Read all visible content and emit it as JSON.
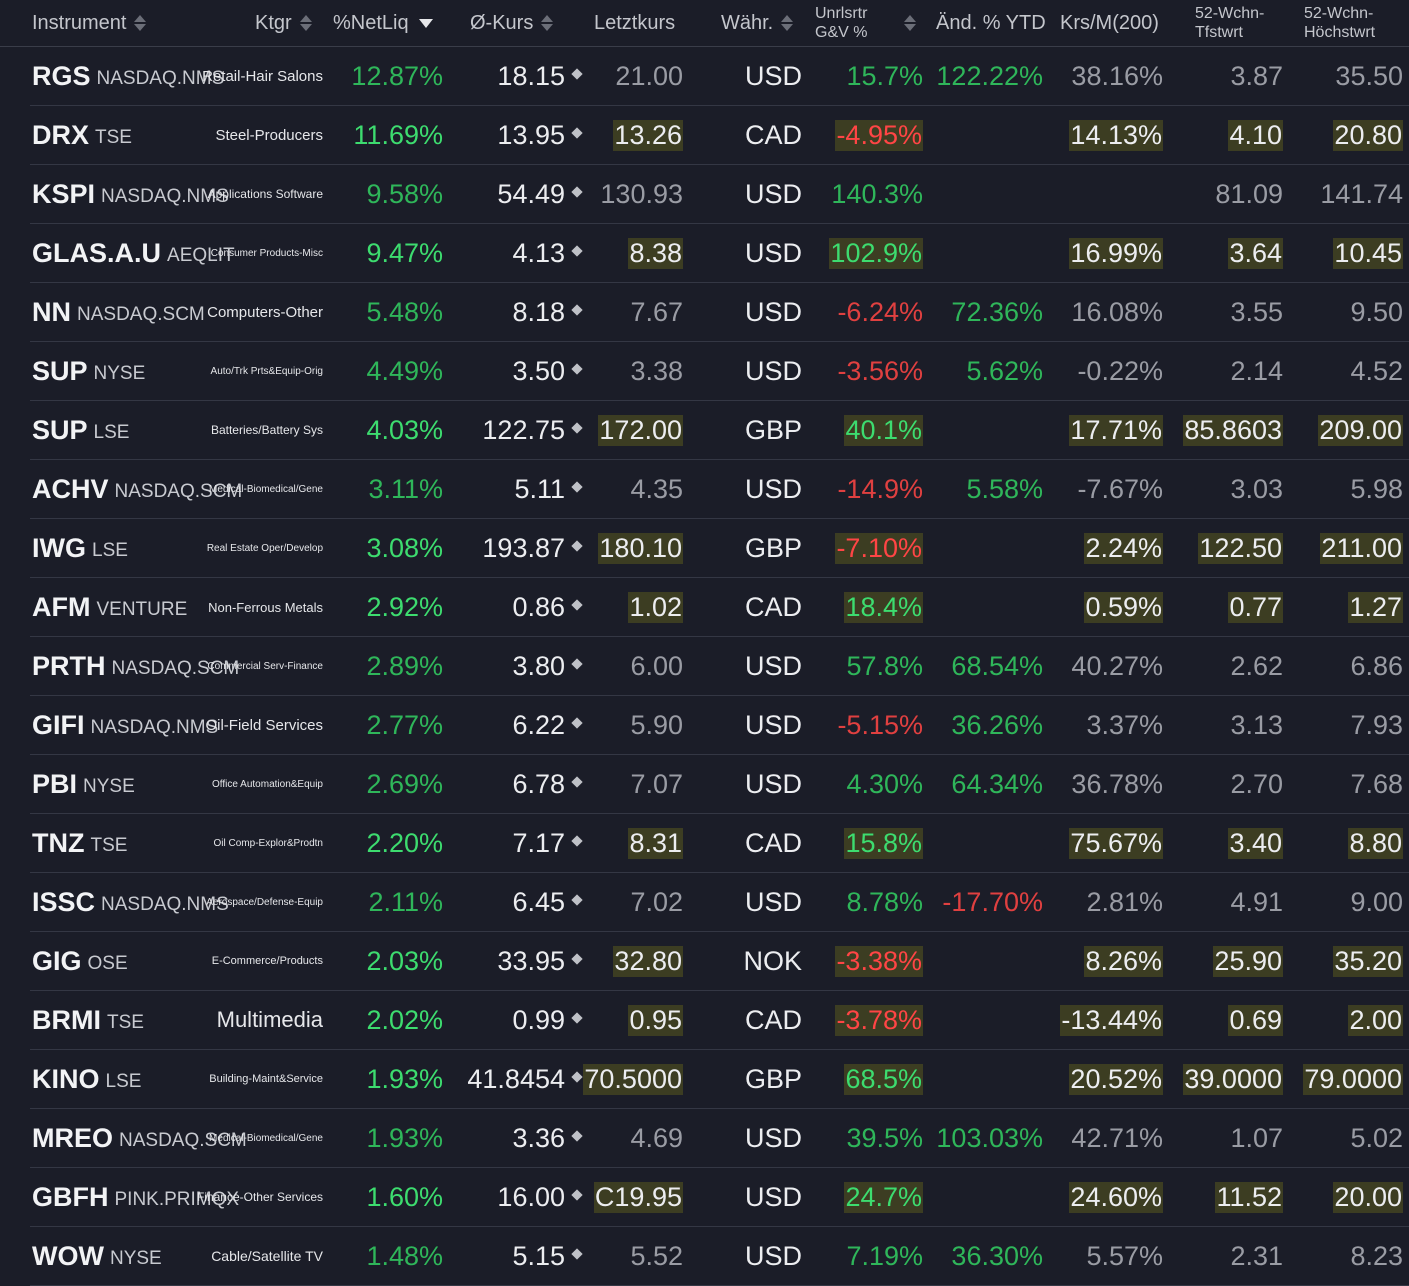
{
  "header": {
    "instrument": "Instrument",
    "ktgr": "Ktgr",
    "netliq": "%NetLiq",
    "avg_price": "Ø-Kurs",
    "last": "Letztkurs",
    "currency": "Währ.",
    "unrl_line1": "Unrlsrtr",
    "unrl_line2": "G&V %",
    "ytd": "Änd. % YTD",
    "ma200": "Krs/M(200)",
    "low_line1": "52-Wchn-",
    "low_line2": "Tfstwrt",
    "high_line1": "52-Wchn-",
    "high_line2": "Höchstwrt"
  },
  "rows": [
    {
      "sym": "RGS",
      "exch": "NASDAQ.NMS",
      "cat": "Retail-Hair Salons",
      "cs": 15,
      "netliq": "12.87%",
      "nc": "dim",
      "avg": "18.15",
      "last": "21.00",
      "lc": "dim",
      "lh": false,
      "cur": "USD",
      "unrl": "15.7%",
      "uc": "dim",
      "ytd": "122.22%",
      "yc": "dim",
      "ma": "38.16%",
      "mc": "dim",
      "low": "3.87",
      "high": "35.50",
      "hh": false
    },
    {
      "sym": "DRX",
      "exch": "TSE",
      "cat": "Steel-Producers",
      "cs": 15,
      "netliq": "11.69%",
      "nc": "pos",
      "avg": "13.95",
      "last": "13.26",
      "lc": "wht",
      "lh": true,
      "cur": "CAD",
      "unrl": "-4.95%",
      "uc": "neg",
      "ytd": "",
      "yc": "dim",
      "ma": "14.13%",
      "mc": "wht",
      "low": "4.10",
      "high": "20.80",
      "hh": true
    },
    {
      "sym": "KSPI",
      "exch": "NASDAQ.NMS",
      "cat": "Applications Software",
      "cs": 12,
      "netliq": "9.58%",
      "nc": "dim",
      "avg": "54.49",
      "last": "130.93",
      "lc": "dim",
      "lh": false,
      "cur": "USD",
      "unrl": "140.3%",
      "uc": "dim",
      "ytd": "",
      "yc": "dim",
      "ma": "",
      "mc": "dim",
      "low": "81.09",
      "high": "141.74",
      "hh": false
    },
    {
      "sym": "GLAS.A.U",
      "exch": "AEQLIT",
      "cat": "Consumer Products-Misc",
      "cs": 10,
      "netliq": "9.47%",
      "nc": "pos",
      "avg": "4.13",
      "last": "8.38",
      "lc": "wht",
      "lh": true,
      "cur": "USD",
      "unrl": "102.9%",
      "uc": "pos",
      "ytd": "",
      "yc": "dim",
      "ma": "16.99%",
      "mc": "wht",
      "low": "3.64",
      "high": "10.45",
      "hh": true
    },
    {
      "sym": "NN",
      "exch": "NASDAQ.SCM",
      "cat": "Computers-Other",
      "cs": 15,
      "netliq": "5.48%",
      "nc": "dim",
      "avg": "8.18",
      "last": "7.67",
      "lc": "dim",
      "lh": false,
      "cur": "USD",
      "unrl": "-6.24%",
      "uc": "negdim",
      "ytd": "72.36%",
      "yc": "dim",
      "ma": "16.08%",
      "mc": "dim",
      "low": "3.55",
      "high": "9.50",
      "hh": false
    },
    {
      "sym": "SUP",
      "exch": "NYSE",
      "cat": "Auto/Trk Prts&Equip-Orig",
      "cs": 10,
      "netliq": "4.49%",
      "nc": "dim",
      "avg": "3.50",
      "last": "3.38",
      "lc": "dim",
      "lh": false,
      "cur": "USD",
      "unrl": "-3.56%",
      "uc": "negdim",
      "ytd": "5.62%",
      "yc": "dim",
      "ma": "-0.22%",
      "mc": "dim",
      "low": "2.14",
      "high": "4.52",
      "hh": false
    },
    {
      "sym": "SUP",
      "exch": "LSE",
      "cat": "Batteries/Battery Sys",
      "cs": 12,
      "netliq": "4.03%",
      "nc": "pos",
      "avg": "122.75",
      "last": "172.00",
      "lc": "wht",
      "lh": true,
      "cur": "GBP",
      "unrl": "40.1%",
      "uc": "pos",
      "ytd": "",
      "yc": "dim",
      "ma": "17.71%",
      "mc": "wht",
      "low": "85.8603",
      "high": "209.00",
      "hh": true
    },
    {
      "sym": "ACHV",
      "exch": "NASDAQ.SCM",
      "cat": "Medical-Biomedical/Gene",
      "cs": 10,
      "netliq": "3.11%",
      "nc": "dim",
      "avg": "5.11",
      "last": "4.35",
      "lc": "dim",
      "lh": false,
      "cur": "USD",
      "unrl": "-14.9%",
      "uc": "negdim",
      "ytd": "5.58%",
      "yc": "dim",
      "ma": "-7.67%",
      "mc": "dim",
      "low": "3.03",
      "high": "5.98",
      "hh": false
    },
    {
      "sym": "IWG",
      "exch": "LSE",
      "cat": "Real Estate Oper/Develop",
      "cs": 10,
      "netliq": "3.08%",
      "nc": "pos",
      "avg": "193.87",
      "last": "180.10",
      "lc": "wht",
      "lh": true,
      "cur": "GBP",
      "unrl": "-7.10%",
      "uc": "neg",
      "ytd": "",
      "yc": "dim",
      "ma": "2.24%",
      "mc": "wht",
      "low": "122.50",
      "high": "211.00",
      "hh": true
    },
    {
      "sym": "AFM",
      "exch": "VENTURE",
      "cat": "Non-Ferrous Metals",
      "cs": 13,
      "netliq": "2.92%",
      "nc": "pos",
      "avg": "0.86",
      "last": "1.02",
      "lc": "wht",
      "lh": true,
      "cur": "CAD",
      "unrl": "18.4%",
      "uc": "pos",
      "ytd": "",
      "yc": "dim",
      "ma": "0.59%",
      "mc": "wht",
      "low": "0.77",
      "high": "1.27",
      "hh": true
    },
    {
      "sym": "PRTH",
      "exch": "NASDAQ.SCM",
      "cat": "Commercial Serv-Finance",
      "cs": 10,
      "netliq": "2.89%",
      "nc": "dim",
      "avg": "3.80",
      "last": "6.00",
      "lc": "dim",
      "lh": false,
      "cur": "USD",
      "unrl": "57.8%",
      "uc": "dim",
      "ytd": "68.54%",
      "yc": "dim",
      "ma": "40.27%",
      "mc": "dim",
      "low": "2.62",
      "high": "6.86",
      "hh": false
    },
    {
      "sym": "GIFI",
      "exch": "NASDAQ.NMS",
      "cat": "Oil-Field Services",
      "cs": 15,
      "netliq": "2.77%",
      "nc": "dim",
      "avg": "6.22",
      "last": "5.90",
      "lc": "dim",
      "lh": false,
      "cur": "USD",
      "unrl": "-5.15%",
      "uc": "negdim",
      "ytd": "36.26%",
      "yc": "dim",
      "ma": "3.37%",
      "mc": "dim",
      "low": "3.13",
      "high": "7.93",
      "hh": false
    },
    {
      "sym": "PBI",
      "exch": "NYSE",
      "cat": "Office Automation&Equip",
      "cs": 10,
      "netliq": "2.69%",
      "nc": "dim",
      "avg": "6.78",
      "last": "7.07",
      "lc": "dim",
      "lh": false,
      "cur": "USD",
      "unrl": "4.30%",
      "uc": "dim",
      "ytd": "64.34%",
      "yc": "dim",
      "ma": "36.78%",
      "mc": "dim",
      "low": "2.70",
      "high": "7.68",
      "hh": false
    },
    {
      "sym": "TNZ",
      "exch": "TSE",
      "cat": "Oil Comp-Explor&Prodtn",
      "cs": 10,
      "netliq": "2.20%",
      "nc": "pos",
      "avg": "7.17",
      "last": "8.31",
      "lc": "wht",
      "lh": true,
      "cur": "CAD",
      "unrl": "15.8%",
      "uc": "pos",
      "ytd": "",
      "yc": "dim",
      "ma": "75.67%",
      "mc": "wht",
      "low": "3.40",
      "high": "8.80",
      "hh": true
    },
    {
      "sym": "ISSC",
      "exch": "NASDAQ.NMS",
      "cat": "Aerospace/Defense-Equip",
      "cs": 10,
      "netliq": "2.11%",
      "nc": "dim",
      "avg": "6.45",
      "last": "7.02",
      "lc": "dim",
      "lh": false,
      "cur": "USD",
      "unrl": "8.78%",
      "uc": "dim",
      "ytd": "-17.70%",
      "yc": "negdim",
      "ma": "2.81%",
      "mc": "dim",
      "low": "4.91",
      "high": "9.00",
      "hh": false
    },
    {
      "sym": "GIG",
      "exch": "OSE",
      "cat": "E-Commerce/Products",
      "cs": 11,
      "netliq": "2.03%",
      "nc": "pos",
      "avg": "33.95",
      "last": "32.80",
      "lc": "wht",
      "lh": true,
      "cur": "NOK",
      "unrl": "-3.38%",
      "uc": "neg",
      "ytd": "",
      "yc": "dim",
      "ma": "8.26%",
      "mc": "wht",
      "low": "25.90",
      "high": "35.20",
      "hh": true
    },
    {
      "sym": "BRMI",
      "exch": "TSE",
      "cat": "Multimedia",
      "cs": 22,
      "netliq": "2.02%",
      "nc": "pos",
      "avg": "0.99",
      "last": "0.95",
      "lc": "wht",
      "lh": true,
      "cur": "CAD",
      "unrl": "-3.78%",
      "uc": "neg",
      "ytd": "",
      "yc": "dim",
      "ma": "-13.44%",
      "mc": "wht",
      "low": "0.69",
      "high": "2.00",
      "hh": true
    },
    {
      "sym": "KINO",
      "exch": "LSE",
      "cat": "Building-Maint&Service",
      "cs": 11,
      "netliq": "1.93%",
      "nc": "pos",
      "avg": "41.8454",
      "last": "70.5000",
      "lc": "wht",
      "lh": true,
      "cur": "GBP",
      "unrl": "68.5%",
      "uc": "pos",
      "ytd": "",
      "yc": "dim",
      "ma": "20.52%",
      "mc": "wht",
      "low": "39.0000",
      "high": "79.0000",
      "hh": true
    },
    {
      "sym": "MREO",
      "exch": "NASDAQ.SCM",
      "cat": "Medical-Biomedical/Gene",
      "cs": 10,
      "netliq": "1.93%",
      "nc": "dim",
      "avg": "3.36",
      "last": "4.69",
      "lc": "dim",
      "lh": false,
      "cur": "USD",
      "unrl": "39.5%",
      "uc": "dim",
      "ytd": "103.03%",
      "yc": "dim",
      "ma": "42.71%",
      "mc": "dim",
      "low": "1.07",
      "high": "5.02",
      "hh": false
    },
    {
      "sym": "GBFH",
      "exch": "PINK.PRIMQX",
      "cat": "Finance-Other Services",
      "cs": 12,
      "netliq": "1.60%",
      "nc": "pos",
      "avg": "16.00",
      "last": "C19.95",
      "lc": "wht",
      "lh": true,
      "cur": "USD",
      "unrl": "24.7%",
      "uc": "pos",
      "ytd": "",
      "yc": "dim",
      "ma": "24.60%",
      "mc": "wht",
      "low": "11.52",
      "high": "20.00",
      "hh": true
    },
    {
      "sym": "WOW",
      "exch": "NYSE",
      "cat": "Cable/Satellite TV",
      "cs": 14,
      "netliq": "1.48%",
      "nc": "dim",
      "avg": "5.15",
      "last": "5.52",
      "lc": "dim",
      "lh": false,
      "cur": "USD",
      "unrl": "7.19%",
      "uc": "dim",
      "ytd": "36.30%",
      "yc": "dim",
      "ma": "5.57%",
      "mc": "dim",
      "low": "2.31",
      "high": "8.23",
      "hh": false
    }
  ],
  "colors": {
    "positive": "#3ddc6f",
    "negative": "#ff4545",
    "highlight": "#3c3d22",
    "background": "#1b1d28"
  }
}
